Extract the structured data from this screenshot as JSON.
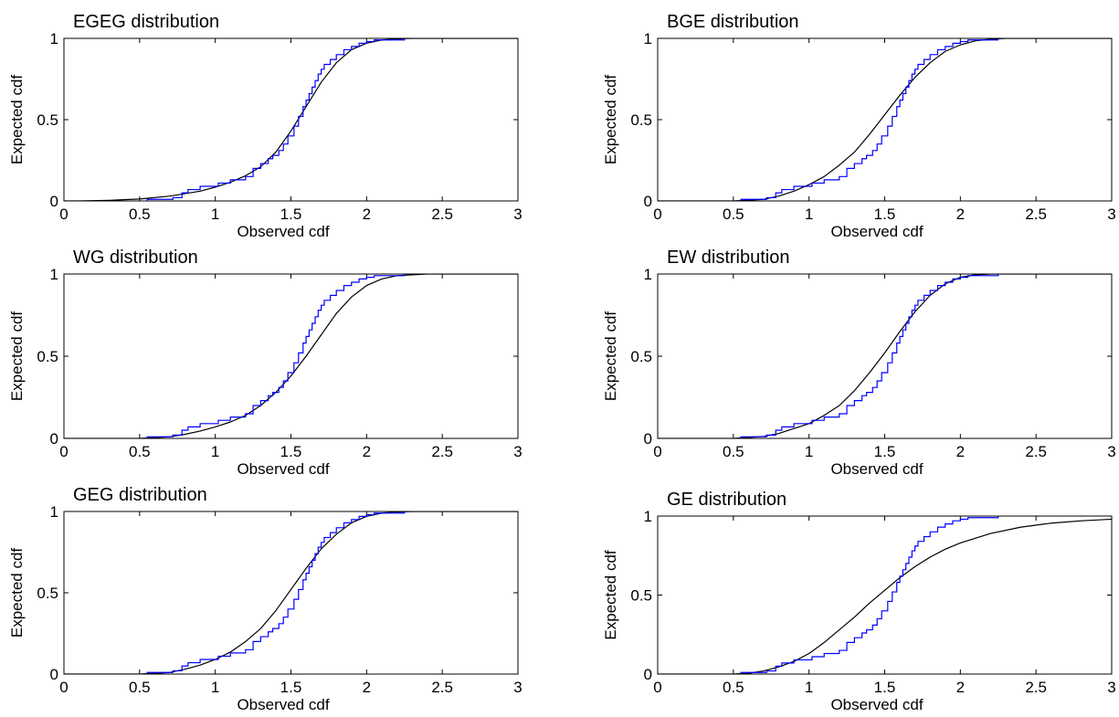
{
  "colors": {
    "empirical": "#0000ff",
    "fitted": "#000000",
    "axes": "#000000"
  },
  "chart_data": [
    {
      "type": "line",
      "title": "EGEG distribution",
      "xlabel": "Observed cdf",
      "ylabel": "Expected cdf",
      "xlim": [
        0,
        3
      ],
      "ylim": [
        0,
        1
      ],
      "xticks": [
        "0",
        "0.5",
        "1",
        "1.5",
        "2",
        "2.5",
        "3"
      ],
      "yticks": [
        "0",
        "0.5",
        "1"
      ],
      "grid": false,
      "series": [
        {
          "kind": "fitted-curve",
          "x": [
            0.1,
            0.3,
            0.5,
            0.7,
            0.9,
            1.0,
            1.1,
            1.2,
            1.3,
            1.4,
            1.5,
            1.6,
            1.7,
            1.8,
            1.9,
            2.0,
            2.1,
            2.2,
            2.3,
            2.5,
            3.0
          ],
          "y": [
            0.0,
            0.004,
            0.012,
            0.03,
            0.06,
            0.085,
            0.115,
            0.155,
            0.21,
            0.3,
            0.43,
            0.58,
            0.73,
            0.85,
            0.93,
            0.97,
            0.99,
            0.997,
            1.0,
            1.0,
            1.0
          ]
        },
        {
          "kind": "empirical-ecdf",
          "x": [
            0.55,
            0.72,
            0.78,
            0.82,
            0.9,
            1.02,
            1.1,
            1.2,
            1.25,
            1.3,
            1.35,
            1.38,
            1.42,
            1.45,
            1.48,
            1.52,
            1.55,
            1.58,
            1.6,
            1.62,
            1.64,
            1.66,
            1.68,
            1.7,
            1.72,
            1.76,
            1.8,
            1.85,
            1.9,
            1.95,
            2.0,
            2.05,
            2.25
          ],
          "y": [
            0.01,
            0.02,
            0.05,
            0.07,
            0.09,
            0.11,
            0.13,
            0.15,
            0.2,
            0.23,
            0.26,
            0.28,
            0.31,
            0.35,
            0.4,
            0.46,
            0.52,
            0.58,
            0.62,
            0.66,
            0.7,
            0.74,
            0.78,
            0.81,
            0.84,
            0.87,
            0.9,
            0.93,
            0.95,
            0.97,
            0.98,
            0.99,
            1.0
          ]
        }
      ]
    },
    {
      "type": "line",
      "title": "BGE distribution",
      "xlabel": "Observed cdf",
      "ylabel": "Expected cdf",
      "xlim": [
        0,
        3
      ],
      "ylim": [
        0,
        1
      ],
      "xticks": [
        "0",
        "0.5",
        "1",
        "1.5",
        "2",
        "2.5",
        "3"
      ],
      "yticks": [
        "0",
        "0.5",
        "1"
      ],
      "grid": false,
      "series": [
        {
          "kind": "fitted-curve",
          "x": [
            0.5,
            0.7,
            0.8,
            0.9,
            1.0,
            1.1,
            1.2,
            1.3,
            1.4,
            1.5,
            1.6,
            1.7,
            1.8,
            1.9,
            2.0,
            2.1,
            2.2,
            2.3,
            3.0
          ],
          "y": [
            0.0,
            0.01,
            0.03,
            0.06,
            0.1,
            0.15,
            0.22,
            0.3,
            0.41,
            0.53,
            0.65,
            0.76,
            0.85,
            0.92,
            0.96,
            0.985,
            0.995,
            1.0,
            1.0
          ]
        },
        {
          "kind": "empirical-ecdf",
          "x": [
            0.55,
            0.72,
            0.78,
            0.82,
            0.9,
            1.02,
            1.1,
            1.2,
            1.25,
            1.3,
            1.35,
            1.38,
            1.42,
            1.45,
            1.48,
            1.52,
            1.55,
            1.58,
            1.6,
            1.62,
            1.64,
            1.66,
            1.68,
            1.7,
            1.72,
            1.76,
            1.8,
            1.85,
            1.9,
            1.95,
            2.0,
            2.05,
            2.25
          ],
          "y": [
            0.01,
            0.02,
            0.05,
            0.07,
            0.09,
            0.11,
            0.13,
            0.15,
            0.2,
            0.23,
            0.26,
            0.28,
            0.31,
            0.35,
            0.4,
            0.46,
            0.52,
            0.58,
            0.62,
            0.66,
            0.7,
            0.74,
            0.78,
            0.81,
            0.84,
            0.87,
            0.9,
            0.93,
            0.95,
            0.97,
            0.98,
            0.99,
            1.0
          ]
        }
      ]
    },
    {
      "type": "line",
      "title": "WG distribution",
      "xlabel": "Observed cdf",
      "ylabel": "Expected cdf",
      "xlim": [
        0,
        3
      ],
      "ylim": [
        0,
        1
      ],
      "xticks": [
        "0",
        "0.5",
        "1",
        "1.5",
        "2",
        "2.5",
        "3"
      ],
      "yticks": [
        "0",
        "0.5",
        "1"
      ],
      "grid": false,
      "series": [
        {
          "kind": "fitted-curve",
          "x": [
            0.5,
            0.7,
            0.8,
            0.9,
            1.0,
            1.1,
            1.2,
            1.3,
            1.4,
            1.5,
            1.6,
            1.7,
            1.8,
            1.9,
            2.0,
            2.1,
            2.2,
            2.4,
            3.0
          ],
          "y": [
            0.0,
            0.01,
            0.025,
            0.045,
            0.07,
            0.1,
            0.14,
            0.2,
            0.28,
            0.38,
            0.5,
            0.63,
            0.76,
            0.86,
            0.93,
            0.97,
            0.99,
            1.0,
            1.0
          ]
        },
        {
          "kind": "empirical-ecdf",
          "x": [
            0.55,
            0.72,
            0.78,
            0.82,
            0.9,
            1.02,
            1.1,
            1.2,
            1.25,
            1.3,
            1.35,
            1.38,
            1.42,
            1.45,
            1.48,
            1.52,
            1.55,
            1.58,
            1.6,
            1.62,
            1.64,
            1.66,
            1.68,
            1.7,
            1.72,
            1.76,
            1.8,
            1.85,
            1.9,
            1.95,
            2.0,
            2.05,
            2.25
          ],
          "y": [
            0.01,
            0.02,
            0.05,
            0.07,
            0.09,
            0.11,
            0.13,
            0.15,
            0.2,
            0.23,
            0.26,
            0.28,
            0.31,
            0.35,
            0.4,
            0.46,
            0.52,
            0.58,
            0.62,
            0.66,
            0.7,
            0.74,
            0.78,
            0.81,
            0.84,
            0.87,
            0.9,
            0.93,
            0.95,
            0.97,
            0.98,
            0.99,
            1.0
          ]
        }
      ]
    },
    {
      "type": "line",
      "title": "EW distribution",
      "xlabel": "Observed cdf",
      "ylabel": "Expected cdf",
      "xlim": [
        0,
        3
      ],
      "ylim": [
        0,
        1
      ],
      "xticks": [
        "0",
        "0.5",
        "1",
        "1.5",
        "2",
        "2.5",
        "3"
      ],
      "yticks": [
        "0",
        "0.5",
        "1"
      ],
      "grid": false,
      "series": [
        {
          "kind": "fitted-curve",
          "x": [
            0.5,
            0.7,
            0.8,
            0.9,
            1.0,
            1.1,
            1.2,
            1.3,
            1.4,
            1.5,
            1.6,
            1.7,
            1.8,
            1.9,
            2.0,
            2.1,
            2.2,
            3.0
          ],
          "y": [
            0.0,
            0.012,
            0.03,
            0.06,
            0.09,
            0.14,
            0.2,
            0.29,
            0.4,
            0.52,
            0.65,
            0.77,
            0.87,
            0.94,
            0.98,
            0.995,
            1.0,
            1.0
          ]
        },
        {
          "kind": "empirical-ecdf",
          "x": [
            0.55,
            0.72,
            0.78,
            0.82,
            0.9,
            1.02,
            1.1,
            1.2,
            1.25,
            1.3,
            1.35,
            1.38,
            1.42,
            1.45,
            1.48,
            1.52,
            1.55,
            1.58,
            1.6,
            1.62,
            1.64,
            1.66,
            1.68,
            1.7,
            1.72,
            1.76,
            1.8,
            1.85,
            1.9,
            1.95,
            2.0,
            2.05,
            2.25
          ],
          "y": [
            0.01,
            0.02,
            0.05,
            0.07,
            0.09,
            0.11,
            0.13,
            0.15,
            0.2,
            0.23,
            0.26,
            0.28,
            0.31,
            0.35,
            0.4,
            0.46,
            0.52,
            0.58,
            0.62,
            0.66,
            0.7,
            0.74,
            0.78,
            0.81,
            0.84,
            0.87,
            0.9,
            0.93,
            0.95,
            0.97,
            0.98,
            0.99,
            1.0
          ]
        }
      ]
    },
    {
      "type": "line",
      "title": "GEG distribution",
      "xlabel": "Observed cdf",
      "ylabel": "Expected cdf",
      "xlim": [
        0,
        3
      ],
      "ylim": [
        0,
        1
      ],
      "xticks": [
        "0",
        "0.5",
        "1",
        "1.5",
        "2",
        "2.5",
        "3"
      ],
      "yticks": [
        "0",
        "0.5",
        "1"
      ],
      "grid": false,
      "series": [
        {
          "kind": "fitted-curve",
          "x": [
            0.5,
            0.7,
            0.8,
            0.9,
            1.0,
            1.1,
            1.2,
            1.3,
            1.4,
            1.5,
            1.6,
            1.7,
            1.8,
            1.9,
            2.0,
            2.1,
            2.2,
            2.3,
            3.0
          ],
          "y": [
            0.0,
            0.01,
            0.03,
            0.055,
            0.09,
            0.135,
            0.2,
            0.28,
            0.39,
            0.52,
            0.65,
            0.77,
            0.86,
            0.93,
            0.97,
            0.99,
            0.997,
            1.0,
            1.0
          ]
        },
        {
          "kind": "empirical-ecdf",
          "x": [
            0.55,
            0.72,
            0.78,
            0.82,
            0.9,
            1.02,
            1.1,
            1.2,
            1.25,
            1.3,
            1.35,
            1.38,
            1.42,
            1.45,
            1.48,
            1.52,
            1.55,
            1.58,
            1.6,
            1.62,
            1.64,
            1.66,
            1.68,
            1.7,
            1.72,
            1.76,
            1.8,
            1.85,
            1.9,
            1.95,
            2.0,
            2.05,
            2.25
          ],
          "y": [
            0.01,
            0.02,
            0.05,
            0.07,
            0.09,
            0.11,
            0.13,
            0.15,
            0.2,
            0.23,
            0.26,
            0.28,
            0.31,
            0.35,
            0.4,
            0.46,
            0.52,
            0.58,
            0.62,
            0.66,
            0.7,
            0.74,
            0.78,
            0.81,
            0.84,
            0.87,
            0.9,
            0.93,
            0.95,
            0.97,
            0.98,
            0.99,
            1.0
          ]
        }
      ]
    },
    {
      "type": "line",
      "title": "GE distribution",
      "xlabel": "Observed cdf",
      "ylabel": "Expected cdf",
      "xlim": [
        0,
        3
      ],
      "ylim": [
        0,
        1
      ],
      "xticks": [
        "0",
        "0.5",
        "1",
        "1.5",
        "2",
        "2.5",
        "3"
      ],
      "yticks": [
        "0",
        "0.5",
        "1"
      ],
      "grid": false,
      "series": [
        {
          "kind": "fitted-curve",
          "x": [
            0.5,
            0.6,
            0.7,
            0.8,
            0.9,
            1.0,
            1.1,
            1.2,
            1.3,
            1.4,
            1.5,
            1.6,
            1.7,
            1.8,
            1.9,
            2.0,
            2.2,
            2.4,
            2.6,
            2.8,
            3.0
          ],
          "y": [
            0.0,
            0.005,
            0.02,
            0.045,
            0.08,
            0.13,
            0.2,
            0.28,
            0.36,
            0.45,
            0.53,
            0.61,
            0.68,
            0.74,
            0.79,
            0.83,
            0.89,
            0.93,
            0.955,
            0.97,
            0.98
          ]
        },
        {
          "kind": "empirical-ecdf",
          "x": [
            0.55,
            0.72,
            0.78,
            0.82,
            0.9,
            1.02,
            1.1,
            1.2,
            1.25,
            1.3,
            1.35,
            1.38,
            1.42,
            1.45,
            1.48,
            1.52,
            1.55,
            1.58,
            1.6,
            1.62,
            1.64,
            1.66,
            1.68,
            1.7,
            1.72,
            1.76,
            1.8,
            1.85,
            1.9,
            1.95,
            2.0,
            2.05,
            2.25
          ],
          "y": [
            0.01,
            0.02,
            0.05,
            0.07,
            0.09,
            0.11,
            0.13,
            0.15,
            0.2,
            0.23,
            0.26,
            0.28,
            0.31,
            0.35,
            0.4,
            0.46,
            0.52,
            0.58,
            0.62,
            0.66,
            0.7,
            0.74,
            0.78,
            0.81,
            0.84,
            0.87,
            0.9,
            0.93,
            0.95,
            0.97,
            0.98,
            0.99,
            1.0
          ]
        }
      ]
    }
  ]
}
